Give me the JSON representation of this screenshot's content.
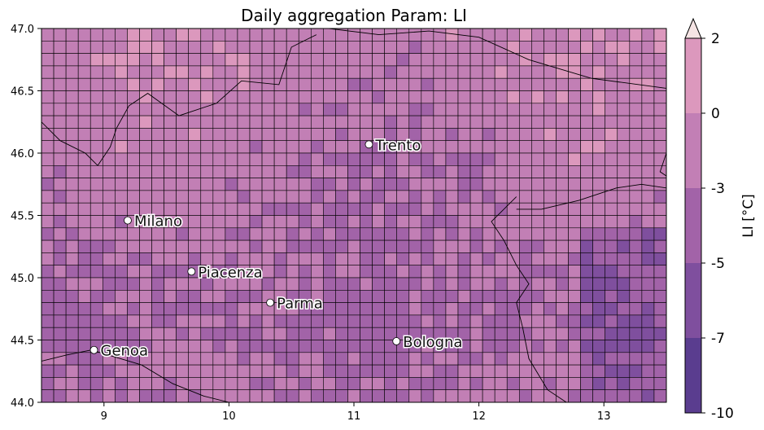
{
  "title": "Daily aggregation Param: LI",
  "colorbar": {
    "label": "LI [°C]",
    "ticks": [
      "2",
      "0",
      "-3",
      "-5",
      "-7",
      "-10"
    ],
    "levels": [
      -10,
      -7,
      -5,
      -3,
      0,
      2
    ],
    "colors": [
      "#5a3d8f",
      "#7f4f9e",
      "#a263a8",
      "#c27fb5",
      "#dc98bd"
    ],
    "extend": "max",
    "extend_color": "#f5e4e4"
  },
  "map": {
    "grid_line_color": "#000000",
    "coast_color": "#000000"
  },
  "chart_data": {
    "type": "heatmap",
    "title": "Daily aggregation Param: LI",
    "xlim": [
      8.5,
      13.5
    ],
    "ylim": [
      44.0,
      47.0
    ],
    "xticks": [
      "9",
      "10",
      "11",
      "12",
      "13"
    ],
    "yticks": [
      "44.0",
      "44.5",
      "45.0",
      "45.5",
      "46.0",
      "46.5",
      "47.0"
    ],
    "cells": {
      "nx": 51,
      "ny": 30
    },
    "cities": [
      {
        "name": "Trento",
        "lon": 11.12,
        "lat": 46.07
      },
      {
        "name": "Milano",
        "lon": 9.19,
        "lat": 45.46
      },
      {
        "name": "Piacenza",
        "lon": 9.7,
        "lat": 45.05
      },
      {
        "name": "Parma",
        "lon": 10.33,
        "lat": 44.8
      },
      {
        "name": "Bologna",
        "lon": 11.34,
        "lat": 44.49
      },
      {
        "name": "Genoa",
        "lon": 8.92,
        "lat": 44.42
      }
    ]
  }
}
